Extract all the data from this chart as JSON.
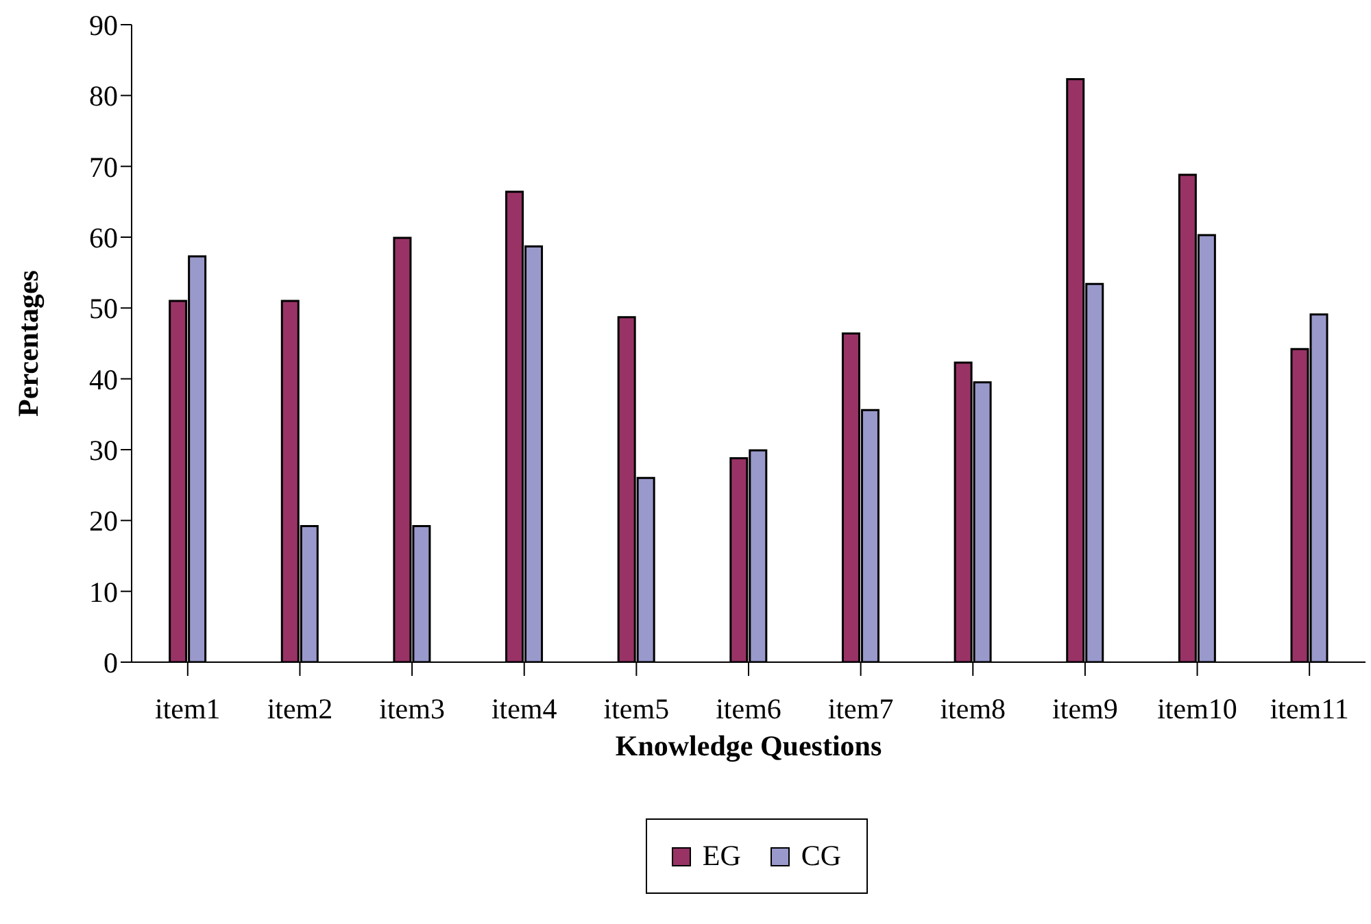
{
  "chart_data": {
    "type": "bar",
    "xlabel": "Knowledge Questions",
    "ylabel": "Percentages",
    "categories": [
      "item1",
      "item2",
      "item3",
      "item4",
      "item5",
      "item6",
      "item7",
      "item8",
      "item9",
      "item10",
      "item11"
    ],
    "series": [
      {
        "name": "EG",
        "color": "#993366",
        "values": [
          51.0,
          51.0,
          59.9,
          66.4,
          48.7,
          28.8,
          46.4,
          42.3,
          82.3,
          68.8,
          44.2
        ]
      },
      {
        "name": "CG",
        "color": "#9999cc",
        "values": [
          57.3,
          19.2,
          19.2,
          58.7,
          26.0,
          29.9,
          35.6,
          39.5,
          53.4,
          60.3,
          49.1
        ]
      }
    ],
    "ylim": [
      0,
      90
    ],
    "yticks": [
      0,
      10,
      20,
      30,
      40,
      50,
      60,
      70,
      80,
      90
    ],
    "grid": false,
    "legend": "bottom"
  }
}
